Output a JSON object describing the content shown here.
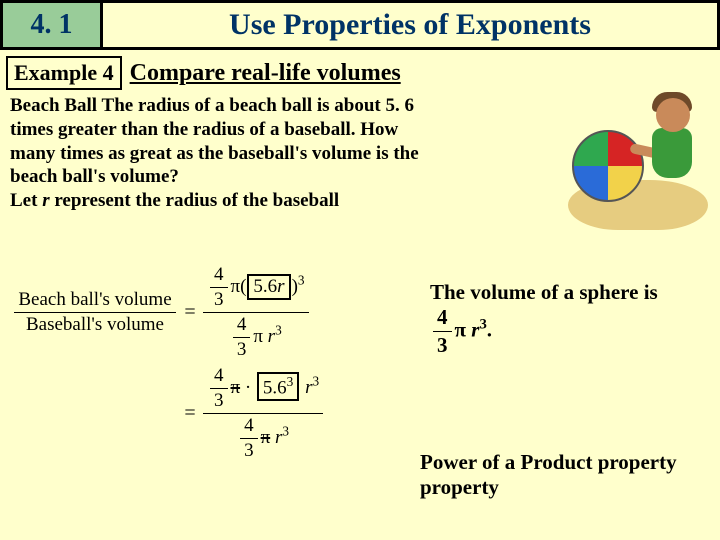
{
  "header": {
    "section_number": "4. 1",
    "title": "Use Properties of Exponents",
    "section_bg": "#99cc99",
    "title_color": "#003366",
    "page_bg": "#ffffcc"
  },
  "example": {
    "label": "Example 4",
    "title": "Compare real-life volumes"
  },
  "problem": {
    "topic": "Beach Ball",
    "text_lines": [
      "The radius of a beach ball is about 5. 6",
      "times greater than the radius of a baseball. How",
      "many times as great as the baseball's volume is the",
      "beach ball's volume?"
    ],
    "let_line_prefix": "Let ",
    "let_variable": "r",
    "let_line_suffix": " represent the radius of the baseball"
  },
  "illustration": {
    "ball_colors": [
      "#d62424",
      "#f2d24a",
      "#2a6bd8",
      "#2fa84f"
    ],
    "sand_color": "#e6cc80",
    "skin_color": "#c98a5a",
    "clothes_color": "#3a9a3a",
    "hair_color": "#6e4a2a"
  },
  "notes": {
    "sphere_volume": "The volume of a sphere is",
    "power_product": "Power of a Product property property"
  },
  "math": {
    "lhs_label_num": "Beach ball's volume",
    "lhs_label_den": "Baseball's volume",
    "four_thirds_num": "4",
    "four_thirds_den": "3",
    "pi": "π",
    "boxed_56r": "5.6r",
    "cube": "3",
    "r": "r",
    "boxed_56_cubed": "5.6",
    "period": "."
  }
}
